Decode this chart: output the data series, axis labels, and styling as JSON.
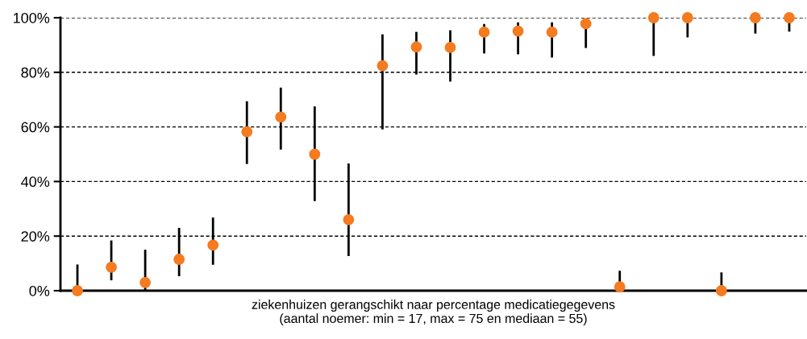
{
  "chart_data": {
    "type": "scatter",
    "xlabel": "ziekenhuizen gerangschikt naar percentage medicatiegegevens\n(aantal noemer: min = 17, max = 75 en mediaan = 55)",
    "categories": [
      null,
      null,
      null,
      null,
      null,
      null,
      null,
      null,
      null,
      null,
      null,
      null,
      null,
      null,
      null,
      null,
      null,
      null,
      null,
      null,
      null,
      null
    ],
    "series": [
      {
        "color": "#f47b20",
        "values": [
          0,
          8.6,
          3.0,
          11.5,
          16.7,
          58.2,
          63.6,
          50.0,
          26.0,
          82.4,
          89.3,
          89.1,
          94.7,
          95.1,
          94.7,
          97.8,
          1.4,
          100,
          100,
          0,
          100,
          100
        ],
        "errors": [
          [
            0,
            9.6
          ],
          [
            3.8,
            18.4
          ],
          [
            0,
            15.0
          ],
          [
            5.3,
            23.0
          ],
          [
            9.5,
            26.8
          ],
          [
            46.4,
            69.4
          ],
          [
            51.7,
            74.4
          ],
          [
            32.8,
            67.5
          ],
          [
            12.7,
            46.6
          ],
          [
            59.1,
            93.9
          ],
          [
            79.2,
            94.8
          ],
          [
            76.6,
            95.4
          ],
          [
            86.9,
            97.7
          ],
          [
            86.6,
            98.3
          ],
          [
            85.4,
            98.3
          ],
          [
            88.9,
            99.7
          ],
          [
            0,
            7.3
          ],
          [
            86,
            100
          ],
          [
            92.8,
            100
          ],
          [
            0,
            6.7
          ],
          [
            94.2,
            100
          ],
          [
            94.9,
            100
          ]
        ]
      }
    ],
    "ylim": [
      0,
      100
    ],
    "yticks": [
      {
        "value": 0,
        "label": "0%"
      },
      {
        "value": 20,
        "label": "20%"
      },
      {
        "value": 40,
        "label": "40%"
      },
      {
        "value": 60,
        "label": "60%"
      },
      {
        "value": 80,
        "label": "80%"
      },
      {
        "value": 100,
        "label": "100%"
      }
    ],
    "grid": "y",
    "tick_labels": "y",
    "marker": "circle",
    "legend": false
  }
}
